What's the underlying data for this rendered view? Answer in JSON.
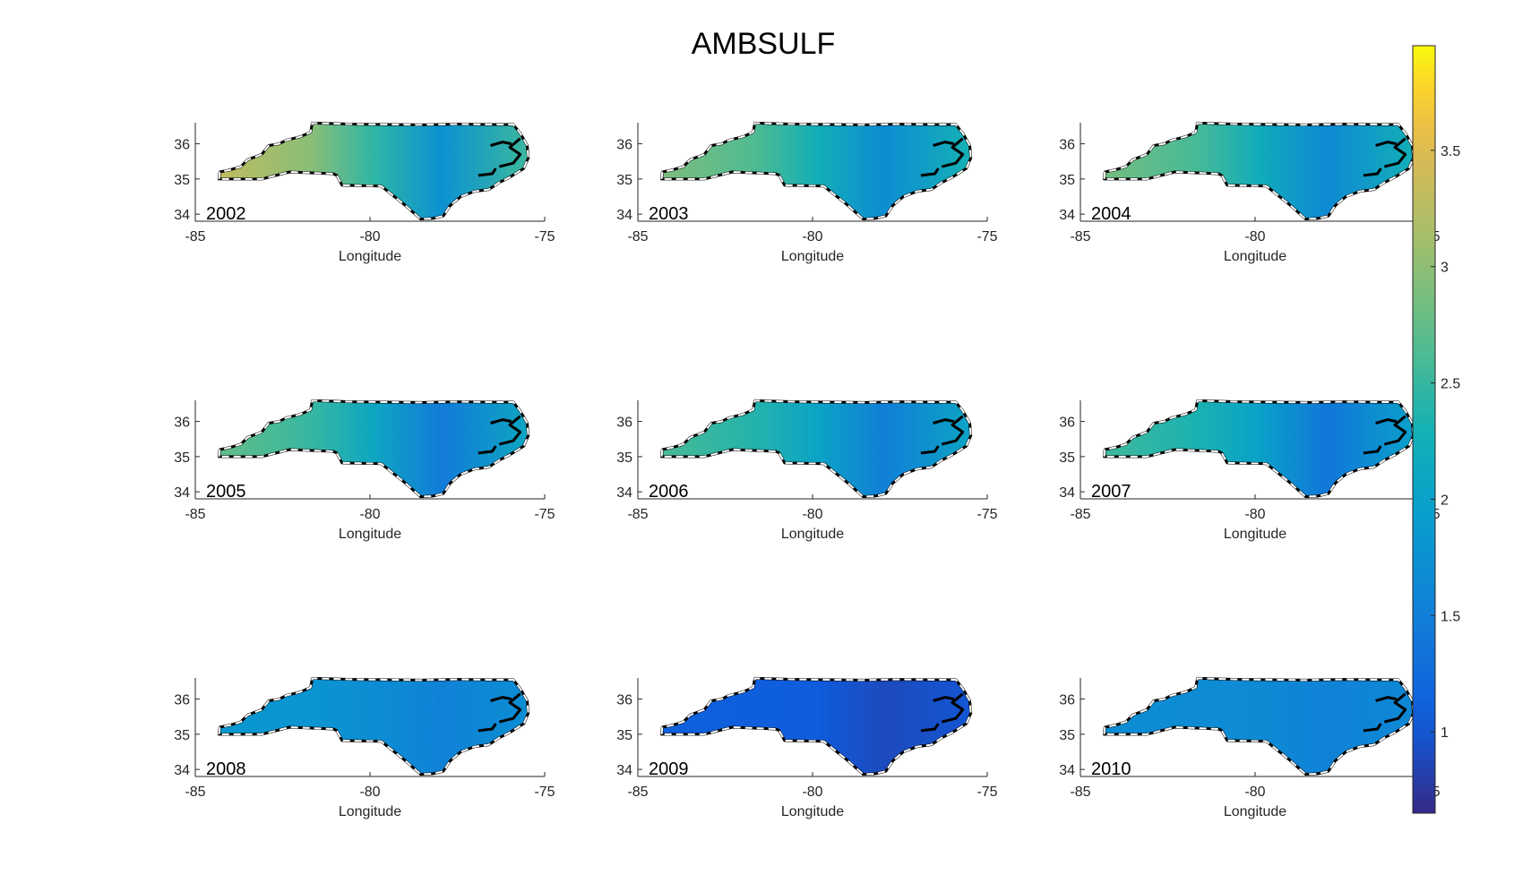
{
  "chart_data": {
    "type": "heatmap",
    "title": "AMBSULF",
    "panels": [
      {
        "label": "2002",
        "mean": 2.45,
        "west": 3.3,
        "east": 1.75
      },
      {
        "label": "2003",
        "mean": 2.25,
        "west": 2.9,
        "east": 1.7
      },
      {
        "label": "2004",
        "mean": 2.2,
        "west": 2.85,
        "east": 1.65
      },
      {
        "label": "2005",
        "mean": 2.1,
        "west": 2.75,
        "east": 1.45
      },
      {
        "label": "2006",
        "mean": 2.05,
        "west": 2.6,
        "east": 1.5
      },
      {
        "label": "2007",
        "mean": 2.0,
        "west": 2.55,
        "east": 1.4
      },
      {
        "label": "2008",
        "mean": 1.7,
        "west": 1.85,
        "east": 1.55
      },
      {
        "label": "2009",
        "mean": 1.05,
        "west": 1.1,
        "east": 0.9
      },
      {
        "label": "2010",
        "mean": 1.65,
        "west": 1.7,
        "east": 1.55
      }
    ],
    "xlabel": "Longitude",
    "ylabel": "",
    "xlim": [
      -85,
      -75
    ],
    "ylim": [
      33.8,
      36.6
    ],
    "xticks": [
      "-85",
      "-80",
      "-75"
    ],
    "yticks": [
      "34",
      "35",
      "36"
    ],
    "colorbar": {
      "range": [
        0.65,
        3.95
      ],
      "ticks": [
        "1",
        "1.5",
        "2",
        "2.5",
        "3",
        "3.5"
      ],
      "colormap": "parula",
      "placement": "right"
    },
    "grid": false
  }
}
